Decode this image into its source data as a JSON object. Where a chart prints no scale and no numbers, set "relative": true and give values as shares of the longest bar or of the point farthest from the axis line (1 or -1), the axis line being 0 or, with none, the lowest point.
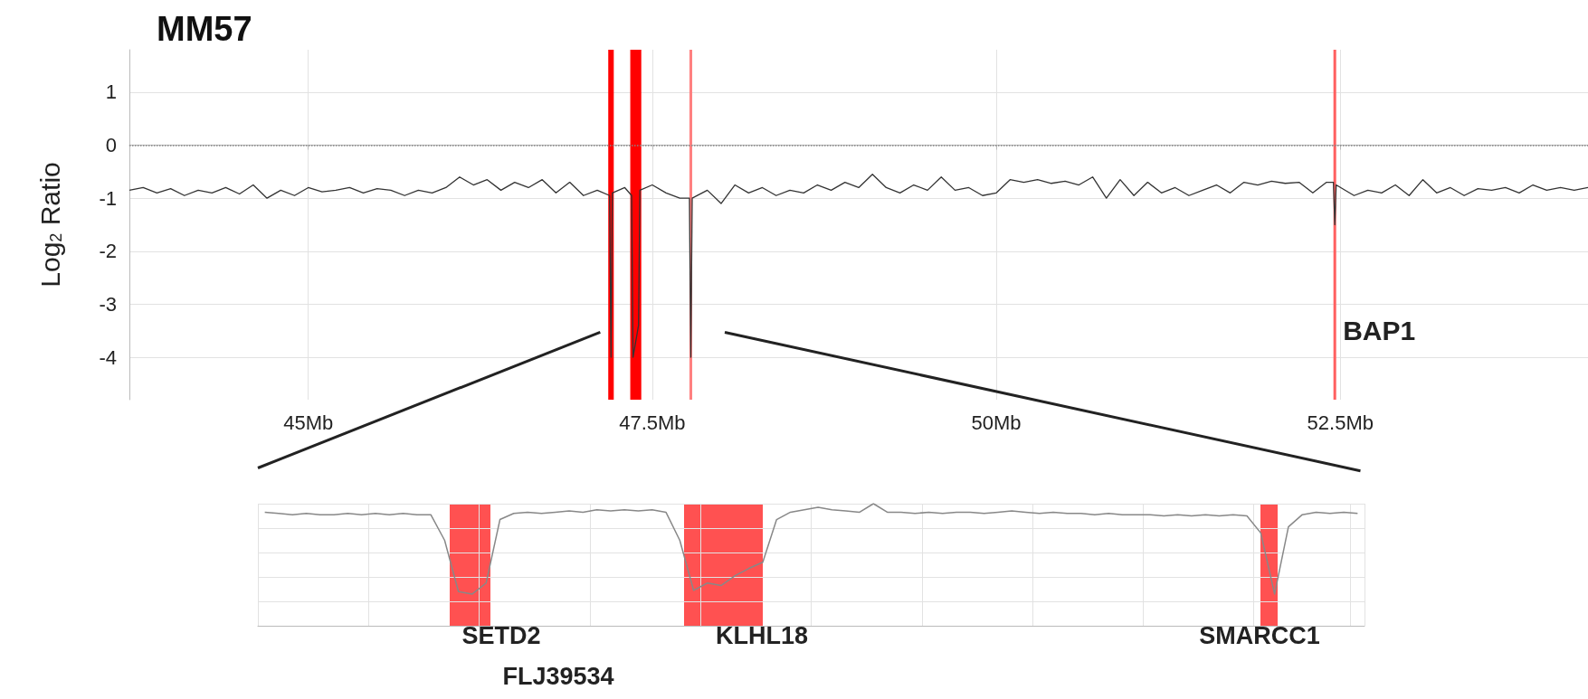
{
  "chart_data": [
    {
      "type": "line",
      "title": "MM57",
      "ylabel": "Log$_{2}$ Ratio",
      "xlim": [
        43.7,
        54.3
      ],
      "ylim": [
        -4.8,
        1.8
      ],
      "xticks": [
        {
          "value": 45,
          "label": "45Mb"
        },
        {
          "value": 47.5,
          "label": "47.5Mb"
        },
        {
          "value": 50,
          "label": "50Mb"
        },
        {
          "value": 52.5,
          "label": "52.5Mb"
        }
      ],
      "yticks": [
        1,
        0,
        -1,
        -2,
        -3,
        -4
      ],
      "grid": true,
      "marker": "none",
      "x": [
        43.7,
        43.8,
        43.9,
        44.0,
        44.1,
        44.2,
        44.3,
        44.4,
        44.5,
        44.6,
        44.7,
        44.8,
        44.9,
        45.0,
        45.1,
        45.2,
        45.3,
        45.4,
        45.5,
        45.6,
        45.7,
        45.8,
        45.9,
        46.0,
        46.1,
        46.2,
        46.3,
        46.4,
        46.5,
        46.6,
        46.7,
        46.8,
        46.9,
        47.0,
        47.1,
        47.19,
        47.2,
        47.21,
        47.3,
        47.35,
        47.36,
        47.4,
        47.41,
        47.5,
        47.6,
        47.7,
        47.77,
        47.78,
        47.79,
        47.9,
        48.0,
        48.1,
        48.2,
        48.3,
        48.4,
        48.5,
        48.6,
        48.7,
        48.8,
        48.9,
        49.0,
        49.1,
        49.2,
        49.3,
        49.4,
        49.5,
        49.6,
        49.7,
        49.8,
        49.9,
        50.0,
        50.1,
        50.2,
        50.3,
        50.4,
        50.5,
        50.6,
        50.7,
        50.8,
        50.9,
        51.0,
        51.1,
        51.2,
        51.3,
        51.4,
        51.5,
        51.6,
        51.7,
        51.8,
        51.9,
        52.0,
        52.1,
        52.2,
        52.3,
        52.4,
        52.45,
        52.46,
        52.47,
        52.6,
        52.7,
        52.8,
        52.9,
        53.0,
        53.1,
        53.2,
        53.3,
        53.4,
        53.5,
        53.6,
        53.7,
        53.8,
        53.9,
        54.0,
        54.1,
        54.2,
        54.3
      ],
      "series": [
        {
          "color": "#333333",
          "values": [
            -0.85,
            -0.8,
            -0.9,
            -0.82,
            -0.95,
            -0.85,
            -0.9,
            -0.8,
            -0.92,
            -0.75,
            -1.0,
            -0.85,
            -0.95,
            -0.8,
            -0.88,
            -0.85,
            -0.8,
            -0.9,
            -0.82,
            -0.85,
            -0.95,
            -0.85,
            -0.9,
            -0.8,
            -0.6,
            -0.75,
            -0.65,
            -0.85,
            -0.7,
            -0.8,
            -0.65,
            -0.9,
            -0.7,
            -0.95,
            -0.85,
            -0.95,
            -4,
            -0.9,
            -0.8,
            -0.95,
            -4,
            -3.4,
            -0.85,
            -0.75,
            -0.9,
            -1.0,
            -1.0,
            -4,
            -1.0,
            -0.85,
            -1.1,
            -0.75,
            -0.9,
            -0.8,
            -0.95,
            -0.85,
            -0.9,
            -0.75,
            -0.85,
            -0.7,
            -0.8,
            -0.55,
            -0.8,
            -0.9,
            -0.75,
            -0.85,
            -0.6,
            -0.85,
            -0.8,
            -0.95,
            -0.9,
            -0.65,
            -0.7,
            -0.65,
            -0.72,
            -0.68,
            -0.75,
            -0.6,
            -1.0,
            -0.65,
            -0.95,
            -0.7,
            -0.9,
            -0.8,
            -0.95,
            -0.85,
            -0.75,
            -0.9,
            -0.7,
            -0.75,
            -0.68,
            -0.72,
            -0.7,
            -0.9,
            -0.7,
            -0.7,
            -1.5,
            -0.75,
            -0.95,
            -0.85,
            -0.9,
            -0.75,
            -0.95,
            -0.65,
            -0.9,
            -0.8,
            -0.95,
            -0.82,
            -0.85,
            -0.8,
            -0.9,
            -0.75,
            -0.85,
            -0.8,
            -0.85,
            -0.8
          ]
        }
      ],
      "bands": [
        {
          "axis": "x",
          "from": 47.18,
          "to": 47.22,
          "color": "#ff0000"
        },
        {
          "axis": "x",
          "from": 47.34,
          "to": 47.42,
          "color": "#ff0000"
        },
        {
          "axis": "x",
          "from": 47.77,
          "to": 47.79,
          "color": "#ff8080"
        },
        {
          "axis": "x",
          "from": 52.45,
          "to": 52.47,
          "color": "#ff6060"
        }
      ],
      "ref_lines": [
        {
          "axis": "y",
          "value": 0,
          "line_style": "dotted",
          "color": "#888888"
        }
      ],
      "annotations": [
        {
          "text": "BAP1",
          "x": 52.46,
          "y": -3.5
        }
      ]
    },
    {
      "type": "line",
      "relative": true,
      "grid": true,
      "marker": "none",
      "categories": [
        null,
        null,
        null,
        null,
        null,
        null,
        null,
        null,
        null,
        null,
        null,
        null,
        null,
        null,
        null,
        null,
        null,
        null,
        null,
        null,
        null,
        null,
        null,
        null,
        null,
        null,
        null,
        null,
        null,
        null,
        null,
        null,
        null,
        null,
        null,
        null,
        null,
        null,
        null,
        null,
        null,
        null,
        null,
        null,
        null,
        null,
        null,
        null,
        null,
        null,
        null,
        null,
        null,
        null,
        null,
        null,
        null,
        null,
        null,
        null,
        null,
        null,
        null,
        null,
        null,
        null,
        null,
        null,
        null,
        null,
        null,
        null,
        null,
        null,
        null,
        null,
        null,
        null,
        null,
        null
      ],
      "series": [
        {
          "type": "line",
          "color": "#888888",
          "values": [
            0.93,
            0.92,
            0.91,
            0.92,
            0.91,
            0.91,
            0.92,
            0.91,
            0.92,
            0.91,
            0.92,
            0.91,
            0.91,
            0.7,
            0.28,
            0.26,
            0.35,
            0.87,
            0.92,
            0.93,
            0.92,
            0.93,
            0.94,
            0.93,
            0.95,
            0.94,
            0.95,
            0.94,
            0.95,
            0.93,
            0.7,
            0.29,
            0.35,
            0.33,
            0.41,
            0.47,
            0.52,
            0.87,
            0.93,
            0.95,
            0.97,
            0.95,
            0.94,
            0.93,
            1,
            0.93,
            0.93,
            0.92,
            0.93,
            0.92,
            0.93,
            0.93,
            0.92,
            0.93,
            0.94,
            0.93,
            0.92,
            0.93,
            0.92,
            0.92,
            0.91,
            0.92,
            0.91,
            0.91,
            0.91,
            0.9,
            0.91,
            0.9,
            0.91,
            0.9,
            0.91,
            0.9,
            0.76,
            0.26,
            0.81,
            0.91,
            0.93,
            0.92,
            0.93,
            0.92
          ]
        }
      ],
      "annotations": [
        "SETD2",
        "FLJ39534",
        "KLHL18",
        "SMARCC1"
      ]
    }
  ]
}
